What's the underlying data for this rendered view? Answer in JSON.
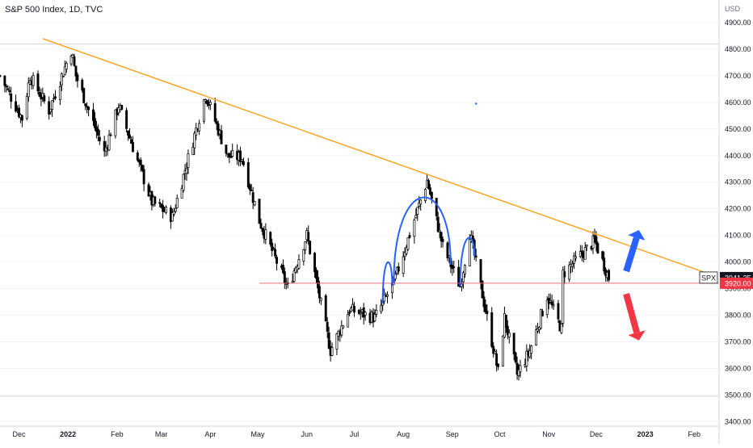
{
  "chart_title": "S&P 500 Index, 1D, TVC",
  "currency": "USD",
  "chart_data": {
    "type": "candlestick",
    "title": "S&P 500 Index, 1D, TVC",
    "ylabel": "USD",
    "ylim": [
      3360,
      4960
    ],
    "y_ticks": [
      3400,
      3500,
      3600,
      3700,
      3800,
      3900,
      4000,
      4100,
      4200,
      4300,
      4400,
      4500,
      4600,
      4700,
      4800,
      4900
    ],
    "y_tick_labels": [
      "3400.00",
      "3500.00",
      "3600.00",
      "3700.00",
      "3800.00",
      "3900.00",
      "4000.00",
      "4100.00",
      "4200.00",
      "4300.00",
      "4400.00",
      "4500.00",
      "4600.00",
      "4700.00",
      "4800.00",
      "4900.00"
    ],
    "x_range": [
      "2021-11-19",
      "2023-02-08"
    ],
    "x_ticks": [
      {
        "label": "Dec",
        "date": "2021-12-01"
      },
      {
        "label": "2022",
        "date": "2022-01-01"
      },
      {
        "label": "Feb",
        "date": "2022-02-01"
      },
      {
        "label": "Mar",
        "date": "2022-03-01"
      },
      {
        "label": "Apr",
        "date": "2022-04-01"
      },
      {
        "label": "May",
        "date": "2022-05-01"
      },
      {
        "label": "Jun",
        "date": "2022-06-01"
      },
      {
        "label": "Jul",
        "date": "2022-07-01"
      },
      {
        "label": "Aug",
        "date": "2022-08-01"
      },
      {
        "label": "Sep",
        "date": "2022-09-01"
      },
      {
        "label": "Oct",
        "date": "2022-10-01"
      },
      {
        "label": "Nov",
        "date": "2022-11-01"
      },
      {
        "label": "Dec",
        "date": "2022-12-01"
      },
      {
        "label": "2023",
        "date": "2023-01-01"
      },
      {
        "label": "Feb",
        "date": "2023-02-01"
      }
    ],
    "series_anchors": [
      {
        "date": "2021-11-19",
        "close": 4700
      },
      {
        "date": "2021-12-03",
        "close": 4540
      },
      {
        "date": "2021-12-08",
        "close": 4700
      },
      {
        "date": "2021-12-20",
        "close": 4570
      },
      {
        "date": "2022-01-03",
        "close": 4796
      },
      {
        "date": "2022-01-06",
        "close": 4700
      },
      {
        "date": "2022-01-24",
        "close": 4410
      },
      {
        "date": "2022-02-02",
        "close": 4589
      },
      {
        "date": "2022-02-23",
        "close": 4225
      },
      {
        "date": "2022-03-08",
        "close": 4170
      },
      {
        "date": "2022-03-29",
        "close": 4631
      },
      {
        "date": "2022-04-12",
        "close": 4397
      },
      {
        "date": "2022-04-21",
        "close": 4393
      },
      {
        "date": "2022-05-02",
        "close": 4155
      },
      {
        "date": "2022-05-20",
        "close": 3901
      },
      {
        "date": "2022-06-01",
        "close": 4101
      },
      {
        "date": "2022-06-16",
        "close": 3667
      },
      {
        "date": "2022-06-28",
        "close": 3821
      },
      {
        "date": "2022-07-14",
        "close": 3790
      },
      {
        "date": "2022-07-26",
        "close": 3921
      },
      {
        "date": "2022-08-16",
        "close": 4305
      },
      {
        "date": "2022-08-26",
        "close": 4058
      },
      {
        "date": "2022-09-06",
        "close": 3908
      },
      {
        "date": "2022-09-12",
        "close": 4110
      },
      {
        "date": "2022-09-30",
        "close": 3586
      },
      {
        "date": "2022-10-04",
        "close": 3790
      },
      {
        "date": "2022-10-12",
        "close": 3577
      },
      {
        "date": "2022-10-20",
        "close": 3666
      },
      {
        "date": "2022-10-31",
        "close": 3872
      },
      {
        "date": "2022-11-09",
        "close": 3748
      },
      {
        "date": "2022-11-10",
        "close": 3956
      },
      {
        "date": "2022-11-30",
        "close": 4080
      },
      {
        "date": "2022-12-09",
        "close": 3941
      }
    ],
    "trendline": {
      "from": {
        "date": "2021-12-15",
        "value": 4840
      },
      "to": {
        "date": "2023-02-08",
        "value": 3960
      }
    },
    "support_level": {
      "value": 3920,
      "label": "3920.00",
      "from": "2022-05-02"
    },
    "last_price": {
      "symbol": "SPX",
      "value": 3941.25,
      "label": "3941.25"
    },
    "arrows": [
      {
        "direction": "up",
        "from": {
          "date": "2022-12-20",
          "value": 3965
        },
        "to": {
          "date": "2022-12-28",
          "value": 4120
        }
      },
      {
        "direction": "down",
        "from": {
          "date": "2022-12-20",
          "value": 3880
        },
        "to": {
          "date": "2022-12-28",
          "value": 3705
        }
      }
    ],
    "pattern_arcs": [
      {
        "from": "2022-07-19",
        "top": 4020,
        "to": "2022-07-25"
      },
      {
        "from": "2022-07-26",
        "top": 4320,
        "to": "2022-08-31"
      },
      {
        "from": "2022-09-06",
        "top": 4110,
        "to": "2022-09-15"
      }
    ],
    "colors": {
      "trendline": "#f5a623",
      "support": "#f26d7d",
      "arc": "#2962ff",
      "up_arrow": "#2962ff",
      "down_arrow": "#f23645",
      "candle": "#000000",
      "price_tag_bg": "#131722",
      "support_tag_bg": "#f23645"
    }
  }
}
